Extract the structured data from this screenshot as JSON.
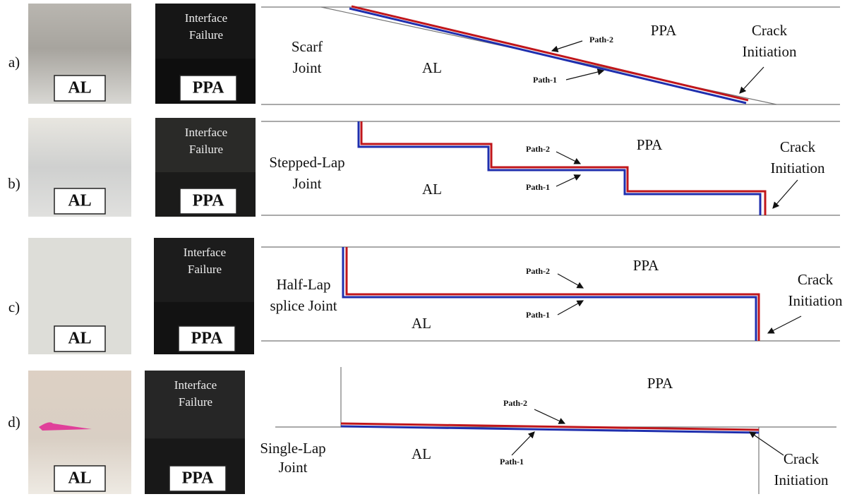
{
  "panels": [
    {
      "label": "a)",
      "photo_left": "AL",
      "photo_right": "PPA",
      "failure": [
        "Interface",
        "Failure"
      ],
      "joint": [
        "Scarf",
        "Joint"
      ],
      "region_top": "PPA",
      "region_bottom": "AL",
      "path_2": "Path-2",
      "path_1": "Path-1",
      "crack": [
        "Crack",
        "Initiation"
      ]
    },
    {
      "label": "b)",
      "photo_left": "AL",
      "photo_right": "PPA",
      "failure": [
        "Interface",
        "Failure"
      ],
      "joint": [
        "Stepped-Lap",
        "Joint"
      ],
      "region_top": "PPA",
      "region_bottom": "AL",
      "path_2": "Path-2",
      "path_1": "Path-1",
      "crack": [
        "Crack",
        "Initiation"
      ]
    },
    {
      "label": "c)",
      "photo_left": "AL",
      "photo_right": "PPA",
      "failure": [
        "Interface",
        "Failure"
      ],
      "joint": [
        "Half-Lap",
        "splice Joint"
      ],
      "region_top": "PPA",
      "region_bottom": "AL",
      "path_2": "Path-2",
      "path_1": "Path-1",
      "crack": [
        "Crack",
        "Initiation"
      ]
    },
    {
      "label": "d)",
      "photo_left": "AL",
      "photo_right": "PPA",
      "failure": [
        "Interface",
        "Failure"
      ],
      "joint": [
        "Single-Lap",
        "Joint"
      ],
      "region_top": "PPA",
      "region_bottom": "AL",
      "path_2": "Path-2",
      "path_1": "Path-1",
      "crack": [
        "Crack",
        "Initiation"
      ]
    }
  ]
}
